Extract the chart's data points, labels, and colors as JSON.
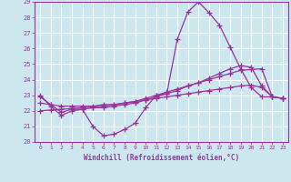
{
  "xlabel": "Windchill (Refroidissement éolien,°C)",
  "bg_color": "#cce8ee",
  "grid_color": "#ffffff",
  "line_color": "#993399",
  "xlim": [
    -0.5,
    23.5
  ],
  "ylim": [
    20,
    29
  ],
  "yticks": [
    20,
    21,
    22,
    23,
    24,
    25,
    26,
    27,
    28,
    29
  ],
  "xticks": [
    0,
    1,
    2,
    3,
    4,
    5,
    6,
    7,
    8,
    9,
    10,
    11,
    12,
    13,
    14,
    15,
    16,
    17,
    18,
    19,
    20,
    21,
    22,
    23
  ],
  "series1": [
    23.0,
    22.3,
    21.7,
    22.0,
    22.1,
    21.0,
    20.4,
    20.5,
    20.8,
    21.2,
    22.2,
    23.0,
    23.1,
    26.6,
    28.35,
    29.0,
    28.3,
    27.5,
    26.1,
    24.7,
    23.5,
    22.9,
    22.9,
    22.8
  ],
  "series2": [
    22.9,
    22.4,
    21.9,
    22.1,
    22.1,
    22.2,
    22.2,
    22.3,
    22.4,
    22.5,
    22.7,
    22.9,
    23.1,
    23.3,
    23.6,
    23.8,
    24.1,
    24.4,
    24.7,
    24.9,
    24.8,
    23.6,
    22.9,
    22.8
  ],
  "series3": [
    22.5,
    22.4,
    22.3,
    22.3,
    22.3,
    22.3,
    22.4,
    22.4,
    22.5,
    22.6,
    22.8,
    23.0,
    23.2,
    23.4,
    23.6,
    23.8,
    24.0,
    24.2,
    24.4,
    24.6,
    24.65,
    24.7,
    22.9,
    22.8
  ],
  "series4": [
    22.0,
    22.05,
    22.1,
    22.15,
    22.2,
    22.25,
    22.3,
    22.4,
    22.5,
    22.6,
    22.7,
    22.8,
    22.9,
    23.0,
    23.1,
    23.2,
    23.3,
    23.4,
    23.5,
    23.6,
    23.65,
    23.5,
    22.9,
    22.8
  ]
}
